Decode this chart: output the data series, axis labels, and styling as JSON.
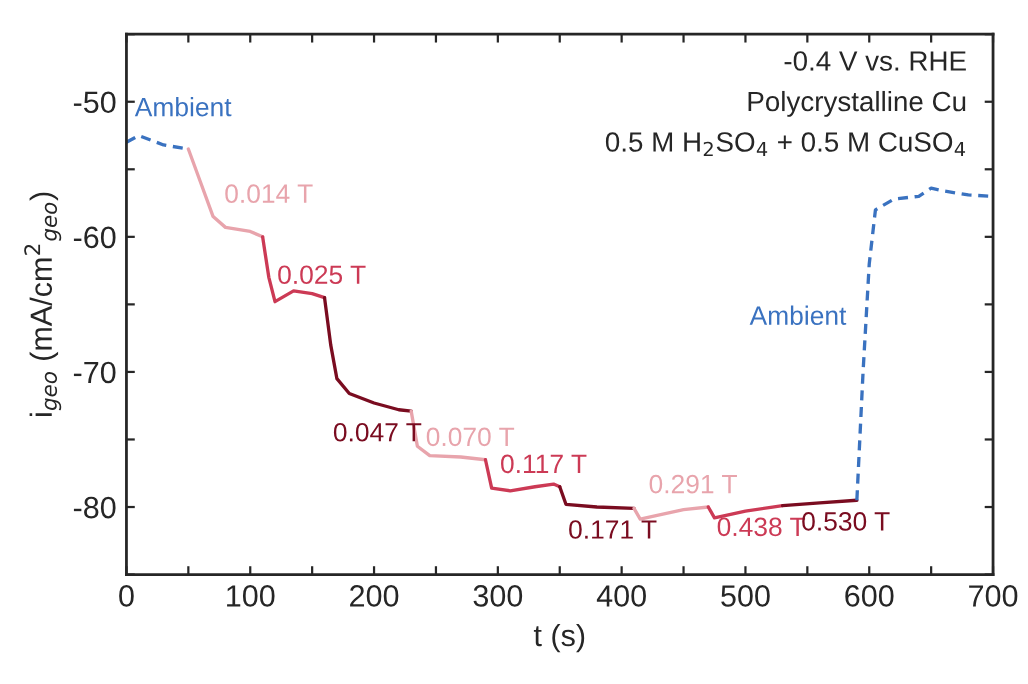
{
  "chart_data": {
    "type": "line",
    "xlabel": "t (s)",
    "ylabel": "i$_{geo}$ (mA/cm$^{2}$$_{geo}$)",
    "annotations": [
      "-0.4 V vs. RHE",
      "Polycrystalline Cu",
      "0.5 M H$_{2}$SO$_{4}$ + 0.5 M CuSO$_{4}$"
    ],
    "xlim": [
      0,
      700
    ],
    "ylim": [
      -85,
      -45
    ],
    "xticks": [
      0,
      {
        "value": 50,
        "label": null
      },
      100,
      {
        "value": 150,
        "label": null
      },
      200,
      {
        "value": 250,
        "label": null
      },
      300,
      {
        "value": 350,
        "label": null
      },
      400,
      {
        "value": 450,
        "label": null
      },
      500,
      {
        "value": 550,
        "label": null
      },
      600,
      {
        "value": 650,
        "label": null
      },
      700
    ],
    "yticks": [
      {
        "value": -85,
        "label": null
      },
      -80,
      {
        "value": -75,
        "label": null
      },
      -70,
      {
        "value": -65,
        "label": null
      },
      -60,
      {
        "value": -55,
        "label": null
      },
      -50,
      {
        "value": -45,
        "label": null
      }
    ],
    "grid": false,
    "legend": false,
    "series": [
      {
        "name": "Ambient",
        "color": "#3a72c0",
        "line_style": "dashed",
        "x": [
          0,
          10,
          30,
          50
        ],
        "values": [
          -53.0,
          -52.5,
          -53.2,
          -53.5
        ]
      },
      {
        "name": "0.014 T",
        "color": "#e8a4ac",
        "line_style": "solid",
        "x": [
          50,
          60,
          70,
          80,
          100,
          110
        ],
        "values": [
          -53.5,
          -56,
          -58.5,
          -59.3,
          -59.6,
          -60
        ]
      },
      {
        "name": "0.025 T",
        "color": "#cc3a55",
        "line_style": "solid",
        "x": [
          110,
          115,
          120,
          135,
          150,
          160
        ],
        "values": [
          -60,
          -63,
          -64.8,
          -64,
          -64.2,
          -64.5
        ]
      },
      {
        "name": "0.047 T",
        "color": "#7a0c20",
        "line_style": "solid",
        "x": [
          160,
          165,
          170,
          180,
          200,
          220,
          230
        ],
        "values": [
          -64.5,
          -68,
          -70.5,
          -71.6,
          -72.3,
          -72.8,
          -72.9
        ]
      },
      {
        "name": "0.070 T",
        "color": "#e8a4ac",
        "line_style": "solid",
        "x": [
          230,
          235,
          245,
          270,
          290
        ],
        "values": [
          -72.9,
          -75.5,
          -76.2,
          -76.3,
          -76.5
        ]
      },
      {
        "name": "0.117 T",
        "color": "#cc3a55",
        "line_style": "solid",
        "x": [
          290,
          295,
          310,
          330,
          345,
          350
        ],
        "values": [
          -76.5,
          -78.6,
          -78.8,
          -78.5,
          -78.3,
          -78.5
        ]
      },
      {
        "name": "0.171 T",
        "color": "#7a0c20",
        "line_style": "solid",
        "x": [
          350,
          355,
          380,
          410
        ],
        "values": [
          -78.5,
          -79.8,
          -80,
          -80.1
        ]
      },
      {
        "name": "0.291 T",
        "color": "#e8a4ac",
        "line_style": "solid",
        "x": [
          410,
          415,
          425,
          450,
          470
        ],
        "values": [
          -80.1,
          -80.9,
          -80.7,
          -80.2,
          -80
        ]
      },
      {
        "name": "0.438 T",
        "color": "#cc3a55",
        "line_style": "solid",
        "x": [
          470,
          475,
          500,
          530
        ],
        "values": [
          -80,
          -80.8,
          -80.3,
          -79.9
        ]
      },
      {
        "name": "0.530 T",
        "color": "#7a0c20",
        "line_style": "solid",
        "x": [
          530,
          560,
          590
        ],
        "values": [
          -79.9,
          -79.7,
          -79.5
        ]
      },
      {
        "name": "Ambient",
        "color": "#3a72c0",
        "line_style": "dashed",
        "x": [
          590,
          595,
          600,
          605,
          620,
          640,
          650,
          660,
          680,
          700
        ],
        "values": [
          -79.5,
          -70,
          -62,
          -58,
          -57.2,
          -57.0,
          -56.4,
          -56.6,
          -56.9,
          -57.0
        ]
      }
    ]
  }
}
